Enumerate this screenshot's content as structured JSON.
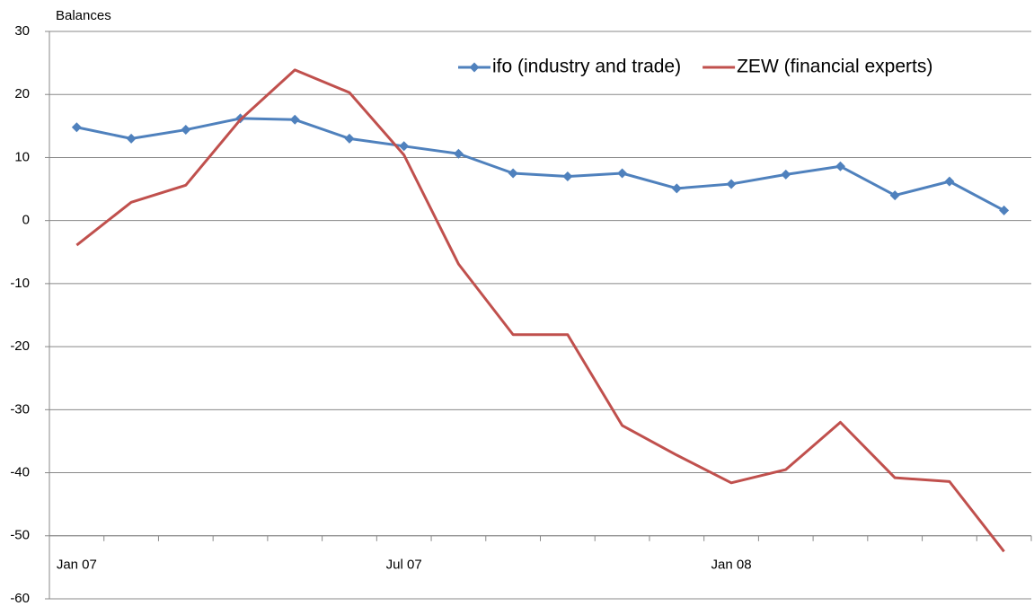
{
  "chart_data": {
    "type": "line",
    "y_axis_label": "Balances",
    "categories": [
      "Jan 07",
      null,
      null,
      null,
      null,
      null,
      "Jul 07",
      null,
      null,
      null,
      null,
      null,
      "Jan 08",
      null,
      null,
      null,
      null,
      null
    ],
    "series": [
      {
        "name": "ifo (industry and trade)",
        "color": "#4f81bd",
        "marker": "diamond",
        "values": [
          14.8,
          13.0,
          14.4,
          16.2,
          16.0,
          13.0,
          11.8,
          10.6,
          7.5,
          7.0,
          7.5,
          5.1,
          5.8,
          7.3,
          8.6,
          4.0,
          6.2,
          1.6
        ]
      },
      {
        "name": "ZEW (financial experts)",
        "color": "#c0504d",
        "marker": "none",
        "values": [
          -3.9,
          2.9,
          5.6,
          16.0,
          23.9,
          20.3,
          10.4,
          -6.9,
          -18.1,
          -18.1,
          -32.5,
          -37.2,
          -41.6,
          -39.5,
          -32.0,
          -40.8,
          -41.4,
          -52.5
        ]
      }
    ],
    "ylim": [
      -60,
      30
    ],
    "yticks": [
      -60,
      -50,
      -40,
      -30,
      -20,
      -10,
      0,
      10,
      20,
      30
    ],
    "x_axis_crosses": -50,
    "grid": true,
    "legend": "top-right"
  }
}
